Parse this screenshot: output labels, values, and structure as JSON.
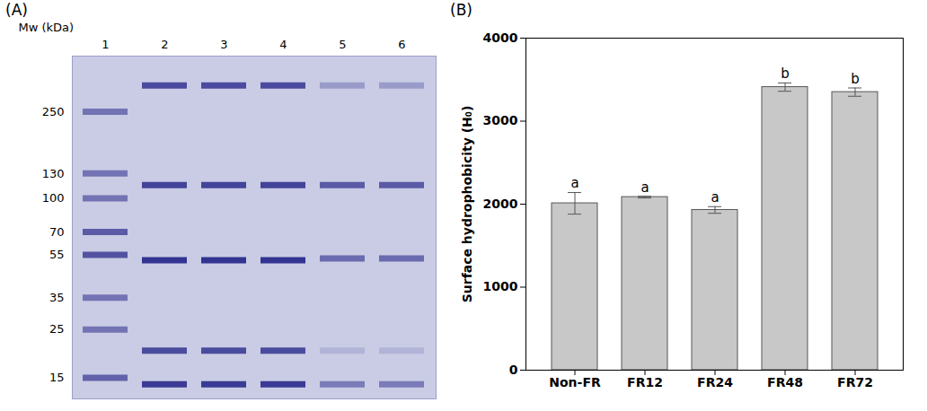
{
  "chart_data": [
    {
      "type": "gel",
      "title": "(A)",
      "categories": [
        "1",
        "2",
        "3",
        "4",
        "5",
        "6"
      ],
      "y_label": "Mw (kDa)",
      "log": "y",
      "ylim": [
        12,
        450
      ],
      "yticks": [
        250,
        130,
        100,
        70,
        55,
        35,
        25,
        15
      ],
      "color": "#2b2a8c",
      "bands": [
        {
          "lane": "1",
          "mw": 250,
          "intensity": 0.55
        },
        {
          "lane": "1",
          "mw": 130,
          "intensity": 0.55
        },
        {
          "lane": "1",
          "mw": 100,
          "intensity": 0.55
        },
        {
          "lane": "1",
          "mw": 70,
          "intensity": 0.7
        },
        {
          "lane": "1",
          "mw": 55,
          "intensity": 0.75
        },
        {
          "lane": "1",
          "mw": 35,
          "intensity": 0.55
        },
        {
          "lane": "1",
          "mw": 25,
          "intensity": 0.55
        },
        {
          "lane": "1",
          "mw": 15,
          "intensity": 0.65
        },
        {
          "lane": "2",
          "mw": 330,
          "intensity": 0.8
        },
        {
          "lane": "2",
          "mw": 115,
          "intensity": 0.85
        },
        {
          "lane": "2",
          "mw": 52,
          "intensity": 0.95
        },
        {
          "lane": "2",
          "mw": 20,
          "intensity": 0.8
        },
        {
          "lane": "2",
          "mw": 14,
          "intensity": 0.9
        },
        {
          "lane": "3",
          "mw": 330,
          "intensity": 0.8
        },
        {
          "lane": "3",
          "mw": 115,
          "intensity": 0.85
        },
        {
          "lane": "3",
          "mw": 52,
          "intensity": 0.95
        },
        {
          "lane": "3",
          "mw": 20,
          "intensity": 0.8
        },
        {
          "lane": "3",
          "mw": 14,
          "intensity": 0.9
        },
        {
          "lane": "4",
          "mw": 330,
          "intensity": 0.8
        },
        {
          "lane": "4",
          "mw": 115,
          "intensity": 0.85
        },
        {
          "lane": "4",
          "mw": 52,
          "intensity": 0.95
        },
        {
          "lane": "4",
          "mw": 20,
          "intensity": 0.8
        },
        {
          "lane": "4",
          "mw": 14,
          "intensity": 0.9
        },
        {
          "lane": "5",
          "mw": 330,
          "intensity": 0.3
        },
        {
          "lane": "5",
          "mw": 115,
          "intensity": 0.7
        },
        {
          "lane": "5",
          "mw": 53,
          "intensity": 0.6
        },
        {
          "lane": "5",
          "mw": 20,
          "intensity": 0.15
        },
        {
          "lane": "5",
          "mw": 14,
          "intensity": 0.5
        },
        {
          "lane": "6",
          "mw": 330,
          "intensity": 0.3
        },
        {
          "lane": "6",
          "mw": 115,
          "intensity": 0.7
        },
        {
          "lane": "6",
          "mw": 53,
          "intensity": 0.6
        },
        {
          "lane": "6",
          "mw": 20,
          "intensity": 0.15
        },
        {
          "lane": "6",
          "mw": 14,
          "intensity": 0.5
        }
      ]
    },
    {
      "type": "bar",
      "title": "(B)",
      "categories": [
        "Non-FR",
        "FR12",
        "FR24",
        "FR48",
        "FR72"
      ],
      "values": [
        2010,
        2085,
        1930,
        3410,
        3350
      ],
      "errors": [
        130,
        10,
        40,
        50,
        50
      ],
      "letters": [
        "a",
        "a",
        "a",
        "b",
        "b"
      ],
      "y_label": "Surface hydrophobicity (H₀)",
      "color": "#c8c8c8",
      "ylim": [
        0,
        4000
      ],
      "yticks": [
        0,
        1000,
        2000,
        3000,
        4000
      ],
      "grid": false
    }
  ]
}
